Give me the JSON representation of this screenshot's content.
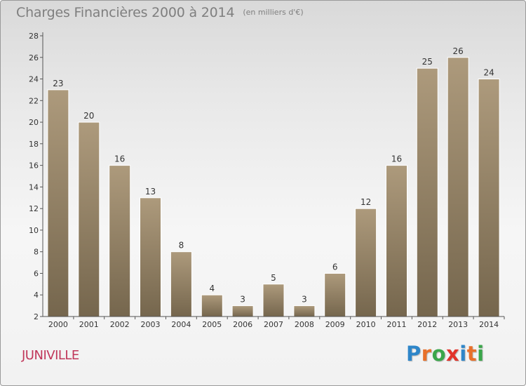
{
  "header": {
    "title": "Charges Financières 2000 à 2014",
    "unit": "(en milliers d'€)"
  },
  "footer": {
    "commune": "JUNIVILLE",
    "logo_letters": [
      "P",
      "r",
      "o",
      "x",
      "i",
      "t",
      "i"
    ],
    "logo_colors": [
      "#2e86c9",
      "#e8702a",
      "#3aa64a",
      "#e2342b",
      "#2e86c9",
      "#e8702a",
      "#3aa64a"
    ]
  },
  "chart_data": {
    "type": "bar",
    "title": "Charges Financières 2000 à 2014",
    "subtitle": "(en milliers d'€)",
    "categories": [
      "2000",
      "2001",
      "2002",
      "2003",
      "2004",
      "2005",
      "2006",
      "2007",
      "2008",
      "2009",
      "2010",
      "2011",
      "2012",
      "2013",
      "2014"
    ],
    "values": [
      23,
      20,
      16,
      13,
      8,
      4,
      3,
      5,
      3,
      6,
      12,
      16,
      25,
      26,
      24
    ],
    "data_labels": [
      "23",
      "20",
      "16",
      "13",
      "8",
      "4",
      "3",
      "5",
      "3",
      "6",
      "12",
      "16",
      "25",
      "26",
      "24"
    ],
    "ylim": [
      2,
      28
    ],
    "yticks": [
      2,
      4,
      6,
      8,
      10,
      12,
      14,
      16,
      18,
      20,
      22,
      24,
      26,
      28
    ],
    "ytick_labels": [
      "2",
      "4",
      "6",
      "8",
      "10",
      "12",
      "14",
      "16",
      "18",
      "20",
      "22",
      "24",
      "26",
      "28"
    ],
    "grid": false,
    "legend": "none",
    "colors": {
      "bar_top": "#ad9a7c",
      "bar_bottom": "#75664d",
      "axis": "#555555"
    }
  }
}
